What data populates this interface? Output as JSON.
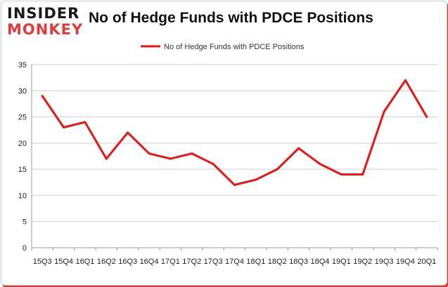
{
  "logo": {
    "line1": "INSIDER",
    "line2": "MONKEY"
  },
  "header": {
    "title": "No of Hedge Funds with PDCE Positions"
  },
  "colors": {
    "series": "#ee1111",
    "grid": "#cfcfcf",
    "axis": "#999999"
  },
  "chart_data": {
    "type": "line",
    "title": "No of Hedge Funds with PDCE Positions",
    "xlabel": "",
    "ylabel": "",
    "ylim": [
      0,
      35
    ],
    "yticks": [
      0,
      5,
      10,
      15,
      20,
      25,
      30,
      35
    ],
    "grid": true,
    "legend": "top-center",
    "categories": [
      "15Q3",
      "15Q4",
      "16Q1",
      "16Q2",
      "16Q3",
      "16Q4",
      "17Q1",
      "17Q2",
      "17Q3",
      "17Q4",
      "18Q1",
      "18Q2",
      "18Q3",
      "18Q4",
      "19Q1",
      "19Q2",
      "19Q3",
      "19Q4",
      "20Q1"
    ],
    "series": [
      {
        "name": "No of Hedge Funds with PDCE Positions",
        "values": [
          29,
          23,
          24,
          17,
          22,
          18,
          17,
          18,
          16,
          12,
          13,
          15,
          19,
          16,
          14,
          14,
          26,
          32,
          25
        ]
      }
    ]
  }
}
